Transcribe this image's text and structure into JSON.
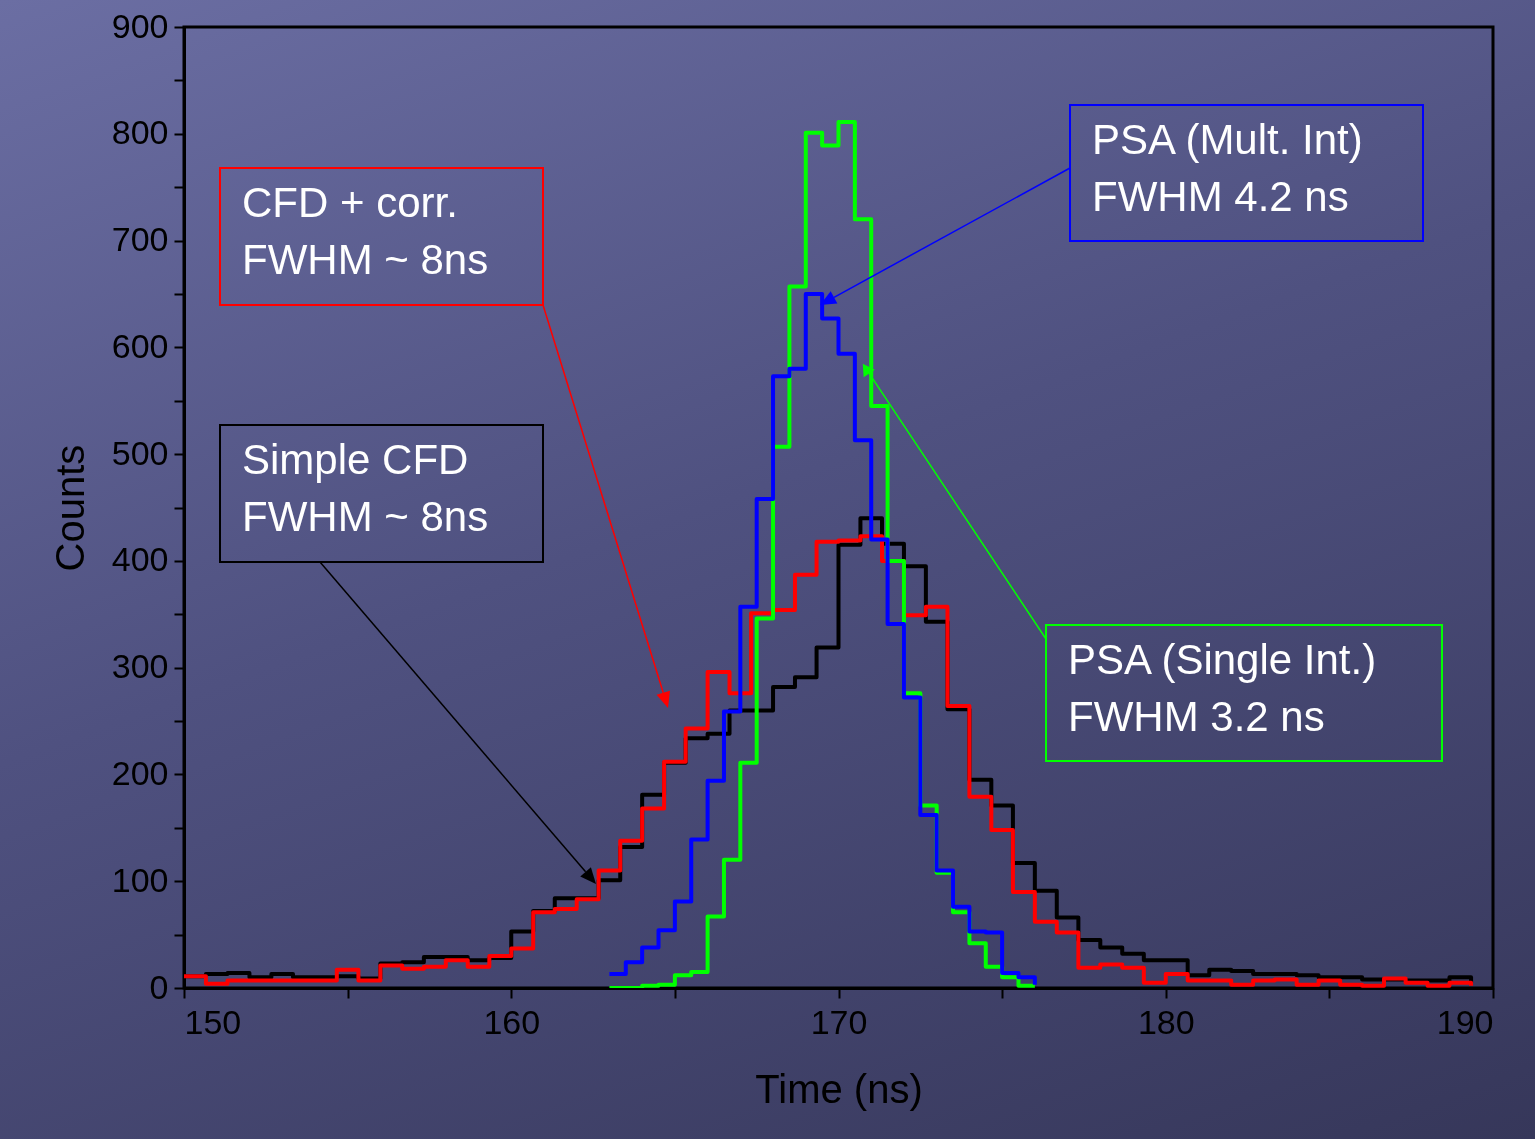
{
  "chart_data": {
    "type": "step",
    "xlabel": "Time (ns)",
    "ylabel": "Counts",
    "xlim": [
      150,
      190
    ],
    "ylim": [
      0,
      900
    ],
    "xticks": [
      150,
      {
        "value": 155,
        "label": null
      },
      160,
      {
        "value": 165,
        "label": null
      },
      170,
      {
        "value": 175,
        "label": null
      },
      180,
      {
        "value": 185,
        "label": null
      },
      190
    ],
    "yticks": [
      0,
      {
        "value": 50,
        "label": null
      },
      100,
      {
        "value": 150,
        "label": null
      },
      200,
      {
        "value": 250,
        "label": null
      },
      300,
      {
        "value": 350,
        "label": null
      },
      400,
      {
        "value": 450,
        "label": null
      },
      500,
      {
        "value": 550,
        "label": null
      },
      600,
      {
        "value": 650,
        "label": null
      },
      700,
      {
        "value": 750,
        "label": null
      },
      800,
      {
        "value": 850,
        "label": null
      },
      900
    ],
    "series": [
      {
        "color": "#000000",
        "x": [
          150,
          150.67,
          151.33,
          152,
          152.67,
          153.33,
          154,
          154.67,
          155.33,
          156,
          156.67,
          157.33,
          158,
          158.67,
          159.33,
          160,
          160.67,
          161.33,
          162,
          162.67,
          163.33,
          164,
          164.67,
          165.33,
          166,
          166.67,
          167.33,
          168,
          168.67,
          169.33,
          170,
          170.67,
          171.33,
          172,
          172.67,
          173.33,
          174,
          174.67,
          175.33,
          176,
          176.67,
          177.33,
          178,
          178.67,
          179.33,
          180,
          180.67,
          181.33,
          182,
          182.67,
          183.33,
          184,
          184.67,
          185.33,
          186,
          186.67,
          187.33,
          188,
          188.67,
          189.33
        ],
        "values": [
          11,
          13,
          14,
          10,
          13,
          10,
          10,
          11,
          9,
          23,
          24,
          29,
          29,
          26,
          28,
          53,
          72,
          84,
          84,
          101,
          132,
          181,
          211,
          234,
          238,
          260,
          260,
          282,
          291,
          319,
          415,
          440,
          416,
          395,
          343,
          261,
          195,
          171,
          117,
          91,
          66,
          45,
          38,
          32,
          26,
          26,
          12,
          17,
          16,
          13,
          13,
          12,
          10,
          10,
          8,
          8,
          7,
          7,
          10,
          5
        ]
      },
      {
        "color": "#ff0000",
        "x": [
          150,
          150.67,
          151.33,
          152,
          152.67,
          153.33,
          154,
          154.67,
          155.33,
          156,
          156.67,
          157.33,
          158,
          158.67,
          159.33,
          160,
          160.67,
          161.33,
          162,
          162.67,
          163.33,
          164,
          164.67,
          165.33,
          166,
          166.67,
          167.33,
          168,
          168.67,
          169.33,
          170,
          170.67,
          171.33,
          172,
          172.67,
          173.33,
          174,
          174.67,
          175.33,
          176,
          176.67,
          177.33,
          178,
          178.67,
          179.33,
          180,
          180.67,
          181.33,
          182,
          182.67,
          183.33,
          184,
          184.67,
          185.33,
          186,
          186.67,
          187.33,
          188,
          188.67,
          189.33
        ],
        "values": [
          11,
          4,
          7,
          7,
          7,
          7,
          7,
          17,
          7,
          21,
          18,
          20,
          26,
          20,
          30,
          37,
          71,
          74,
          83,
          110,
          138,
          168,
          212,
          243,
          296,
          276,
          351,
          354,
          387,
          418,
          419,
          423,
          400,
          349,
          357,
          264,
          179,
          148,
          90,
          62,
          52,
          19,
          22,
          19,
          5,
          13,
          7,
          7,
          3,
          7,
          8,
          3,
          7,
          3,
          2,
          9,
          5,
          2,
          5,
          2
        ]
      },
      {
        "color": "#00ff00",
        "x": [
          163,
          163.5,
          164,
          164.5,
          165,
          165.5,
          166,
          166.5,
          167,
          167.5,
          168,
          168.5,
          169,
          169.5,
          170,
          170.5,
          171,
          171.5,
          172,
          172.5,
          173,
          173.5,
          174,
          174.5,
          175,
          175.5,
          176
        ],
        "values": [
          0,
          0,
          2,
          3,
          12,
          15,
          67,
          120,
          211,
          346,
          507,
          657,
          801,
          789,
          811,
          720,
          545,
          400,
          276,
          171,
          108,
          71,
          42,
          20,
          10,
          2,
          2
        ]
      },
      {
        "color": "#0000ff",
        "x": [
          163,
          163.5,
          164,
          164.5,
          165,
          165.5,
          166,
          166.5,
          167,
          167.5,
          168,
          168.5,
          169,
          169.5,
          170,
          170.5,
          171,
          171.5,
          172,
          172.5,
          173,
          173.5,
          174,
          174.5,
          175,
          175.5,
          176
        ],
        "values": [
          13,
          24,
          38,
          54,
          81,
          139,
          194,
          259,
          357,
          458,
          573,
          580,
          650,
          627,
          594,
          513,
          420,
          341,
          272,
          162,
          110,
          76,
          53,
          52,
          14,
          10,
          3
        ]
      }
    ],
    "annotations": [
      "Simple CFD\nFWHM ~ 8ns",
      "CFD + corr.\nFWHM ~ 8ns",
      {
        "text": "PSA (Single Int.)\nFWHM 3.2 ns",
        "x": 170.84,
        "y": 580
      },
      "PSA (Mult. Int)\nFWHM 4.2 ns"
    ]
  }
}
